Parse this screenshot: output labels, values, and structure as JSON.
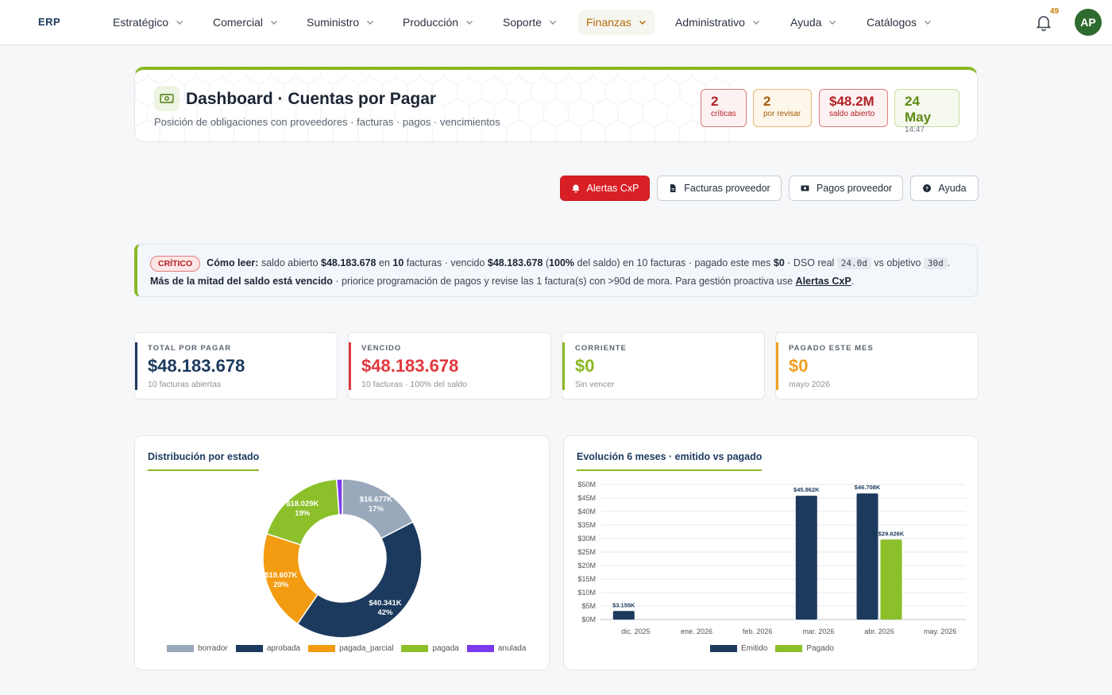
{
  "nav": {
    "logo": "ERP",
    "items": [
      {
        "label": "Estratégico",
        "active": false
      },
      {
        "label": "Comercial",
        "active": false
      },
      {
        "label": "Suministro",
        "active": false
      },
      {
        "label": "Producción",
        "active": false
      },
      {
        "label": "Soporte",
        "active": false
      },
      {
        "label": "Finanzas",
        "active": true
      },
      {
        "label": "Administrativo",
        "active": false
      },
      {
        "label": "Ayuda",
        "active": false
      },
      {
        "label": "Catálogos",
        "active": false
      }
    ],
    "notifications": "49",
    "avatar": "AP"
  },
  "header": {
    "icon": "cash-icon",
    "title": "Dashboard · Cuentas por Pagar",
    "subtitle": "Posición de obligaciones con proveedores · facturas · pagos · vencimientos",
    "chips": [
      {
        "value": "2",
        "label": "críticas"
      },
      {
        "value": "2",
        "label": "por revisar"
      },
      {
        "value": "$48.2M",
        "label": "saldo abierto"
      },
      {
        "value": "24 May",
        "label": "14:47"
      }
    ]
  },
  "actions": {
    "alerts": "Alertas CxP",
    "invoices": "Facturas proveedor",
    "payments": "Pagos proveedor",
    "help": "Ayuda"
  },
  "alert": {
    "badge": "CRÍTICO",
    "t1": "Cómo leer:",
    "t2": " saldo abierto ",
    "t3": "$48.183.678",
    "t4": " en ",
    "t5": "10",
    "t6": " facturas · vencido ",
    "t7": "$48.183.678",
    "t8": " (",
    "t9": "100%",
    "t10": " del saldo) en 10 facturas · pagado este mes ",
    "t11": "$0",
    "t12": " · DSO real ",
    "t13": "24.0d",
    "t14": " vs objetivo ",
    "t15": "30d",
    "t16": ". ",
    "t17": "Más de la mitad del saldo está vencido",
    "t18": " · priorice programación de pagos y revise las 1 factura(s) con >90d de mora. Para gestión proactiva use ",
    "t19": "Alertas CxP",
    "t20": "."
  },
  "stats": [
    {
      "label": "TOTAL POR PAGAR",
      "value": "$48.183.678",
      "sub": "10 facturas abiertas",
      "color": "#1c3a5e"
    },
    {
      "label": "VENCIDO",
      "value": "$48.183.678",
      "sub": "10 facturas · 100% del saldo",
      "color": "#e0393e"
    },
    {
      "label": "CORRIENTE",
      "value": "$0",
      "sub": "Sin vencer",
      "color": "#8bb824"
    },
    {
      "label": "PAGADO ESTE MES",
      "value": "$0",
      "sub": "mayo 2026",
      "color": "#f0a020"
    }
  ],
  "chart_data": [
    {
      "type": "pie",
      "title": "Distribución por estado",
      "categories": [
        "borrador",
        "aprobada",
        "pagada_parcial",
        "pagada",
        "anulada"
      ],
      "values": [
        16677,
        40341,
        19607,
        18029,
        1100
      ],
      "labels": [
        "$16.677K",
        "$40.341K",
        "$19.607K",
        "$18.029K",
        ""
      ],
      "percents": [
        "17%",
        "42%",
        "20%",
        "19%",
        ""
      ],
      "colors": [
        "#9aa8bb",
        "#1c3a5e",
        "#f39c12",
        "#8bc02a",
        "#7c3aed"
      ],
      "legend": "bottom"
    },
    {
      "type": "bar",
      "title": "Evolución 6 meses · emitido vs pagado",
      "categories": [
        "dic. 2025",
        "ene. 2026",
        "feb. 2026",
        "mar. 2026",
        "abr. 2026",
        "may. 2026"
      ],
      "series": [
        {
          "name": "Emitido",
          "values": [
            3155,
            0,
            0,
            45862,
            46708,
            0
          ],
          "labels": [
            "$3.155K",
            "",
            "",
            "$45.862K",
            "$46.708K",
            ""
          ],
          "color": "#1c3a5e"
        },
        {
          "name": "Pagado",
          "values": [
            0,
            0,
            0,
            0,
            29626,
            0
          ],
          "labels": [
            "",
            "",
            "",
            "",
            "$29.626K",
            ""
          ],
          "color": "#8bc02a"
        }
      ],
      "yticks": [
        "$0M",
        "$5M",
        "$10M",
        "$15M",
        "$20M",
        "$25M",
        "$30M",
        "$35M",
        "$40M",
        "$45M",
        "$50M"
      ],
      "ylim": [
        0,
        50000
      ],
      "grid": true,
      "legend": "bottom"
    }
  ]
}
